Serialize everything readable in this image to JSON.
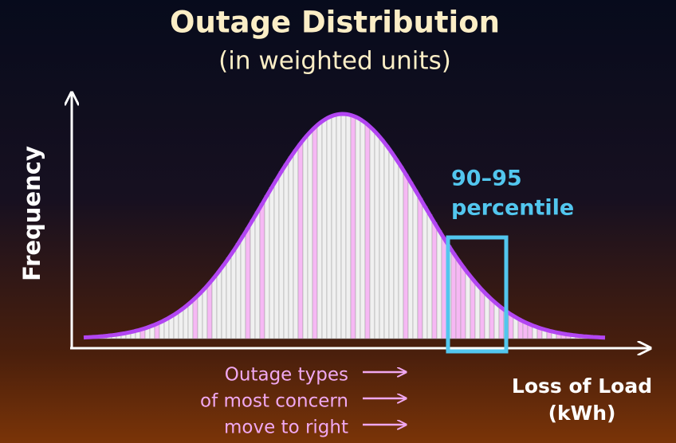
{
  "header": {
    "title": "Outage Distribution",
    "subtitle": "(in weighted units)"
  },
  "axes": {
    "y_label": "Frequency",
    "x_label": [
      "Loss of Load",
      "(kWh)"
    ]
  },
  "highlight": {
    "label": [
      "90–95",
      "percentile"
    ]
  },
  "annotation": {
    "lines": [
      "Outage types",
      "of most concern",
      "move to right"
    ]
  }
}
